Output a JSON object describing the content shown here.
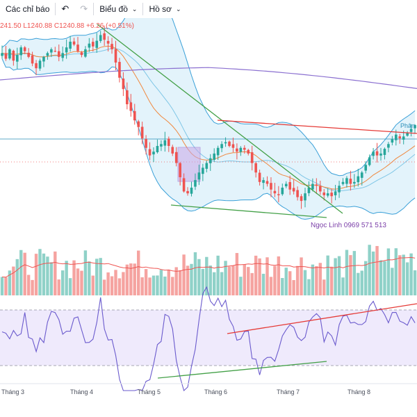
{
  "toolbar": {
    "indicators_label": "Các chỉ báo",
    "chart_label": "Biểu đồ",
    "profile_label": "Hồ sơ"
  },
  "ohlc": {
    "text": "241.50 L1240.88 C1240.88 +6.26 (+0.51%)"
  },
  "annotations": {
    "watermark": "Ngọc Linh 0969 571 513",
    "right_label": "Phân"
  },
  "x_axis": {
    "labels": [
      "Tháng 3",
      "Tháng 4",
      "Tháng 5",
      "Tháng 6",
      "Tháng 7",
      "Tháng 8"
    ]
  },
  "colors": {
    "up": "#26a69a",
    "down": "#ef5350",
    "up_volume": "#8fd1c8",
    "down_volume": "#f5a3a0",
    "bollinger_fill": "#d6eef8",
    "ma_long": "#8a6fd0",
    "ema": "#f0883e",
    "rsi_line": "#6a5acd",
    "rsi_band": "#efeafc",
    "trend_red": "#e53935",
    "trend_green": "#43a047"
  },
  "chart_data": {
    "type": "candlestick",
    "ohlc_closes": [
      1266,
      1260,
      1270,
      1258,
      1264,
      1272,
      1268,
      1262,
      1255,
      1250,
      1258,
      1262,
      1266,
      1270,
      1268,
      1262,
      1266,
      1272,
      1278,
      1275,
      1268,
      1264,
      1270,
      1276,
      1273,
      1279,
      1285,
      1280,
      1276,
      1270,
      1256,
      1240,
      1228,
      1212,
      1205,
      1195,
      1188,
      1176,
      1166,
      1158,
      1162,
      1168,
      1170,
      1174,
      1168,
      1160,
      1150,
      1135,
      1120,
      1118,
      1124,
      1132,
      1140,
      1145,
      1150,
      1155,
      1160,
      1166,
      1170,
      1172,
      1168,
      1166,
      1162,
      1166,
      1164,
      1160,
      1150,
      1140,
      1130,
      1132,
      1128,
      1122,
      1118,
      1116,
      1124,
      1128,
      1122,
      1120,
      1114,
      1110,
      1118,
      1124,
      1128,
      1126,
      1120,
      1116,
      1118,
      1115,
      1120,
      1126,
      1130,
      1134,
      1128,
      1130,
      1136,
      1140,
      1148,
      1156,
      1162,
      1158,
      1160,
      1165,
      1170,
      1175,
      1180,
      1176,
      1178,
      1182,
      1186,
      1190
    ],
    "rsi_range": [
      0,
      100
    ],
    "rsi_levels": [
      70,
      30
    ],
    "x_axis_labels": [
      "Tháng 3",
      "Tháng 4",
      "Tháng 5",
      "Tháng 6",
      "Tháng 7",
      "Tháng 8"
    ]
  }
}
